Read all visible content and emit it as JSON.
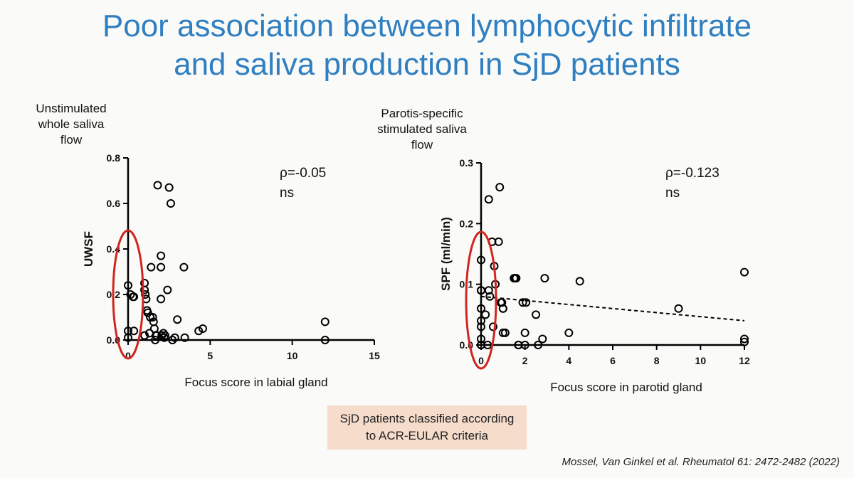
{
  "slide": {
    "title_line1": "Poor association between lymphocytic infiltrate",
    "title_line2": "and saliva production in SjD patients",
    "note_line1": "SjD patients classified according",
    "note_line2": "to ACR-EULAR criteria",
    "citation": "Mossel, Van Ginkel et al. Rheumatol 61: 2472-2482 (2022)",
    "accent_color": "#2f7fc1",
    "highlight_color": "#d0261f",
    "note_bg": "#f5dccb"
  },
  "chart_data": [
    {
      "type": "scatter",
      "title_lines": [
        "Unstimulated",
        "whole saliva",
        "flow"
      ],
      "xlabel": "Focus score in labial gland",
      "ylabel": "UWSF",
      "xlim": [
        0,
        15
      ],
      "ylim": [
        0,
        0.8
      ],
      "xticks": [
        0,
        5,
        10,
        15
      ],
      "xtick_labels": [
        "0",
        "5",
        "10",
        "15"
      ],
      "yticks": [
        0,
        0.2,
        0.4,
        0.6,
        0.8
      ],
      "ytick_labels": [
        "0.0",
        "0.2",
        "0.4",
        "0.6",
        "0.8"
      ],
      "annotation": [
        "ρ=-0.05",
        "ns"
      ],
      "x": [
        0,
        0,
        0,
        0.15,
        0.3,
        0.35,
        0.35,
        1,
        1,
        1,
        1.05,
        1.1,
        1.15,
        1.2,
        1.3,
        1.35,
        1.4,
        1.5,
        1.55,
        1.6,
        1.65,
        1.7,
        1.75,
        1.8,
        2,
        2,
        2,
        2.05,
        2.15,
        2.2,
        2.25,
        2.4,
        2.5,
        2.6,
        2.7,
        2.85,
        3,
        3.4,
        3.45,
        4.3,
        4.55,
        12,
        12
      ],
      "y": [
        0.24,
        0.04,
        0.01,
        0.2,
        0.19,
        0.19,
        0.04,
        0.25,
        0.22,
        0.02,
        0.2,
        0.18,
        0.13,
        0.12,
        0.03,
        0.1,
        0.32,
        0.1,
        0.08,
        0.05,
        0.0,
        0.02,
        0.02,
        0.68,
        0.37,
        0.32,
        0.18,
        0.02,
        0.03,
        0.01,
        0.02,
        0.22,
        0.67,
        0.6,
        0.0,
        0.01,
        0.09,
        0.32,
        0.01,
        0.04,
        0.05,
        0.08,
        0.0
      ],
      "grid": false
    },
    {
      "type": "scatter",
      "title_lines": [
        "Parotis-specific",
        "stimulated saliva",
        "flow"
      ],
      "xlabel": "Focus score in parotid gland",
      "ylabel": "SPF (ml/min)",
      "xlim": [
        0,
        12
      ],
      "ylim": [
        0,
        0.3
      ],
      "xticks": [
        0,
        2,
        4,
        6,
        8,
        10,
        12
      ],
      "xtick_labels": [
        "0",
        "2",
        "4",
        "6",
        "8",
        "10",
        "12"
      ],
      "yticks": [
        0,
        0.1,
        0.2,
        0.3
      ],
      "ytick_labels": [
        "0.0",
        "0.1",
        "0.2",
        "0.3"
      ],
      "annotation": [
        "ρ=-0.123",
        "ns"
      ],
      "x": [
        0,
        0,
        0,
        0,
        0,
        0,
        0,
        0,
        0,
        0.2,
        0.3,
        0.35,
        0.35,
        0.4,
        0.5,
        0.55,
        0.6,
        0.65,
        0.8,
        0.85,
        0.9,
        0.95,
        1,
        1,
        1,
        1.1,
        1.5,
        1.55,
        1.6,
        1.7,
        1.7,
        1.9,
        2,
        2,
        2.05,
        2.5,
        2.6,
        2.8,
        2.9,
        4,
        4.5,
        9,
        12,
        12,
        12
      ],
      "y": [
        0.14,
        0.09,
        0.06,
        0.04,
        0.03,
        0.01,
        0.0,
        0.0,
        0.09,
        0.05,
        0.0,
        0.24,
        0.09,
        0.08,
        0.17,
        0.03,
        0.13,
        0.1,
        0.17,
        0.26,
        0.07,
        0.07,
        0.06,
        0.02,
        0.06,
        0.02,
        0.11,
        0.11,
        0.11,
        0.0,
        0.0,
        0.07,
        0.02,
        0.0,
        0.07,
        0.05,
        0.0,
        0.01,
        0.11,
        0.02,
        0.105,
        0.06,
        0.12,
        0.01,
        0.005
      ],
      "trendline": {
        "x": [
          0,
          12
        ],
        "y": [
          0.08,
          0.04
        ]
      },
      "grid": false
    }
  ]
}
